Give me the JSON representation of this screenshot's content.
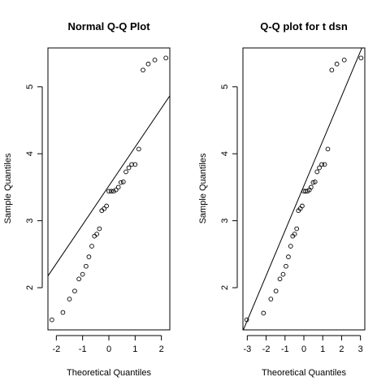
{
  "chart_data": [
    {
      "type": "scatter",
      "title": "Normal Q-Q Plot",
      "xlabel": "Theoretical Quantiles",
      "ylabel": "Sample Quantiles",
      "xlim": [
        -2.32,
        2.32
      ],
      "ylim": [
        1.37,
        5.58
      ],
      "xticks": [
        -2,
        -1,
        0,
        1,
        2
      ],
      "yticks": [
        2,
        3,
        4,
        5
      ],
      "grid": false,
      "series": [
        {
          "points": [
            [
              -2.17,
              1.52
            ],
            [
              -1.75,
              1.63
            ],
            [
              -1.5,
              1.83
            ],
            [
              -1.3,
              1.95
            ],
            [
              -1.14,
              2.13
            ],
            [
              -1.0,
              2.2
            ],
            [
              -0.87,
              2.32
            ],
            [
              -0.76,
              2.46
            ],
            [
              -0.65,
              2.62
            ],
            [
              -0.55,
              2.77
            ],
            [
              -0.46,
              2.8
            ],
            [
              -0.36,
              2.88
            ],
            [
              -0.27,
              3.15
            ],
            [
              -0.18,
              3.18
            ],
            [
              -0.09,
              3.22
            ],
            [
              0.0,
              3.44
            ],
            [
              0.09,
              3.44
            ],
            [
              0.18,
              3.44
            ],
            [
              0.27,
              3.46
            ],
            [
              0.36,
              3.5
            ],
            [
              0.46,
              3.57
            ],
            [
              0.55,
              3.58
            ],
            [
              0.65,
              3.73
            ],
            [
              0.76,
              3.79
            ],
            [
              0.87,
              3.84
            ],
            [
              1.0,
              3.84
            ],
            [
              1.14,
              4.07
            ],
            [
              1.3,
              5.25
            ],
            [
              1.5,
              5.34
            ],
            [
              1.75,
              5.4
            ],
            [
              2.17,
              5.43
            ]
          ]
        }
      ],
      "reference_line": {
        "intercept": 3.52,
        "slope": 0.58
      }
    },
    {
      "type": "scatter",
      "title": "Q-Q plot for t dsn",
      "xlabel": "Theoretical Quantiles",
      "ylabel": "Sample Quantiles",
      "xlim": [
        -3.23,
        3.23
      ],
      "ylim": [
        1.37,
        5.58
      ],
      "xticks": [
        -3,
        -2,
        -1,
        0,
        1,
        2,
        3
      ],
      "yticks": [
        2,
        3,
        4,
        5
      ],
      "grid": false,
      "series": [
        {
          "points": [
            [
              -3.03,
              1.52
            ],
            [
              -2.14,
              1.62
            ],
            [
              -1.75,
              1.83
            ],
            [
              -1.48,
              1.95
            ],
            [
              -1.27,
              2.13
            ],
            [
              -1.1,
              2.2
            ],
            [
              -0.95,
              2.32
            ],
            [
              -0.82,
              2.46
            ],
            [
              -0.7,
              2.62
            ],
            [
              -0.59,
              2.77
            ],
            [
              -0.49,
              2.8
            ],
            [
              -0.38,
              2.88
            ],
            [
              -0.29,
              3.15
            ],
            [
              -0.19,
              3.18
            ],
            [
              -0.09,
              3.22
            ],
            [
              0.0,
              3.44
            ],
            [
              0.09,
              3.44
            ],
            [
              0.19,
              3.44
            ],
            [
              0.29,
              3.46
            ],
            [
              0.38,
              3.5
            ],
            [
              0.49,
              3.57
            ],
            [
              0.59,
              3.58
            ],
            [
              0.7,
              3.73
            ],
            [
              0.82,
              3.79
            ],
            [
              0.95,
              3.84
            ],
            [
              1.1,
              3.84
            ],
            [
              1.27,
              4.07
            ],
            [
              1.48,
              5.25
            ],
            [
              1.75,
              5.34
            ],
            [
              2.14,
              5.4
            ],
            [
              3.03,
              5.43
            ]
          ]
        }
      ],
      "reference_line": {
        "intercept": 3.52,
        "slope": 0.67
      }
    }
  ]
}
